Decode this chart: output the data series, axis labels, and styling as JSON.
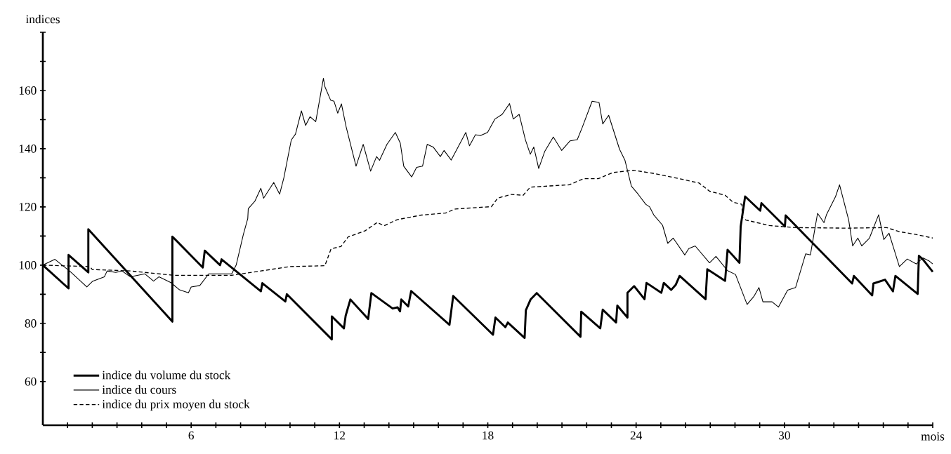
{
  "chart_data": {
    "type": "line",
    "xlabel": "mois",
    "ylabel": "indices",
    "xlim": [
      0,
      36
    ],
    "ylim": [
      45,
      180
    ],
    "xticks": [
      {
        "value": 1,
        "label": null
      },
      {
        "value": 2,
        "label": null
      },
      {
        "value": 3,
        "label": null
      },
      {
        "value": 4,
        "label": null
      },
      {
        "value": 5,
        "label": null
      },
      6,
      {
        "value": 7,
        "label": null
      },
      {
        "value": 8,
        "label": null
      },
      {
        "value": 9,
        "label": null
      },
      {
        "value": 10,
        "label": null
      },
      {
        "value": 11,
        "label": null
      },
      12,
      {
        "value": 13,
        "label": null
      },
      {
        "value": 14,
        "label": null
      },
      {
        "value": 15,
        "label": null
      },
      {
        "value": 16,
        "label": null
      },
      {
        "value": 17,
        "label": null
      },
      18,
      {
        "value": 19,
        "label": null
      },
      {
        "value": 20,
        "label": null
      },
      {
        "value": 21,
        "label": null
      },
      {
        "value": 22,
        "label": null
      },
      {
        "value": 23,
        "label": null
      },
      24,
      {
        "value": 25,
        "label": null
      },
      {
        "value": 26,
        "label": null
      },
      {
        "value": 27,
        "label": null
      },
      {
        "value": 28,
        "label": null
      },
      {
        "value": 29,
        "label": null
      },
      30,
      {
        "value": 31,
        "label": null
      },
      {
        "value": 32,
        "label": null
      },
      {
        "value": 33,
        "label": null
      },
      {
        "value": 34,
        "label": null
      },
      {
        "value": 35,
        "label": null
      },
      {
        "value": 36,
        "label": null
      }
    ],
    "yticks": [
      60,
      {
        "value": 70,
        "label": null
      },
      80,
      {
        "value": 90,
        "label": null
      },
      100,
      {
        "value": 110,
        "label": null
      },
      120,
      {
        "value": 130,
        "label": null
      },
      140,
      {
        "value": 150,
        "label": null
      },
      160,
      {
        "value": 170,
        "label": null
      },
      {
        "value": 180,
        "label": null
      }
    ],
    "legend": "bottom left",
    "series": [
      {
        "name": "indice du volume du stock",
        "color": "#000000",
        "line_style": "solid",
        "x": [
          0,
          1.04,
          1.04,
          1.84,
          1.84,
          5.24,
          5.24,
          6.47,
          6.55,
          7.17,
          7.23,
          8.82,
          8.88,
          9.81,
          9.87,
          11.69,
          11.69,
          12.18,
          12.25,
          12.44,
          13.16,
          13.29,
          14.15,
          14.35,
          14.45,
          14.5,
          14.78,
          14.9,
          16.45,
          16.6,
          18.21,
          18.31,
          18.71,
          18.81,
          19.49,
          19.54,
          19.73,
          19.98,
          21.75,
          21.78,
          22.55,
          22.65,
          23.19,
          23.24,
          23.65,
          23.65,
          23.92,
          24.34,
          24.42,
          25.02,
          25.12,
          25.42,
          25.6,
          25.76,
          26.81,
          26.88,
          27.6,
          27.7,
          28.18,
          28.23,
          28.41,
          29.02,
          29.07,
          30.02,
          30.05,
          32.74,
          32.81,
          33.55,
          33.6,
          34.07,
          34.39,
          34.49,
          35.39,
          35.44,
          35.6,
          36
        ],
        "values": [
          100,
          92,
          103.5,
          97.5,
          112.3,
          80.6,
          109.8,
          99.2,
          105,
          100,
          102,
          91,
          93.8,
          87.5,
          90,
          74.5,
          82.4,
          78.3,
          82.6,
          88.2,
          81.5,
          90.4,
          85.1,
          85.5,
          84.1,
          88.2,
          85.8,
          91.1,
          79.5,
          89.4,
          76.1,
          82,
          78.7,
          80.3,
          75,
          84.5,
          88.2,
          90.4,
          75.4,
          84,
          78.3,
          84.7,
          80.3,
          86.1,
          82,
          90.5,
          92.8,
          88.3,
          93.9,
          90.5,
          93.9,
          91.5,
          93.2,
          96.3,
          88.3,
          98.6,
          94.6,
          105.3,
          100.8,
          113.3,
          123.6,
          118.7,
          121.3,
          113.3,
          117.1,
          93.7,
          96.3,
          89.6,
          93.7,
          95,
          91,
          96.3,
          90.1,
          103.2,
          102,
          97.7
        ]
      },
      {
        "name": "indice du cours",
        "color": "#000000",
        "line_style": "solid",
        "x": [
          0,
          0.49,
          0.78,
          1.08,
          1.78,
          2.02,
          2.49,
          2.6,
          2.95,
          3.2,
          3.54,
          4.13,
          4.48,
          4.7,
          5.18,
          5.53,
          5.89,
          6.0,
          6.35,
          6.71,
          7.64,
          7.82,
          8.11,
          8.29,
          8.31,
          8.58,
          8.82,
          8.93,
          9.34,
          9.58,
          9.75,
          10.05,
          10.22,
          10.46,
          10.63,
          10.81,
          11.04,
          11.35,
          11.41,
          11.64,
          11.78,
          11.93,
          12.08,
          12.27,
          12.67,
          12.96,
          13.26,
          13.5,
          13.62,
          13.92,
          14.26,
          14.46,
          14.6,
          14.92,
          15.12,
          15.36,
          15.55,
          15.8,
          16.08,
          16.23,
          16.52,
          17.11,
          17.26,
          17.5,
          17.7,
          17.99,
          18.29,
          18.58,
          18.88,
          19.03,
          19.27,
          19.52,
          19.72,
          19.86,
          20.06,
          20.3,
          20.65,
          20.99,
          21.33,
          21.62,
          21.82,
          22.22,
          22.5,
          22.65,
          22.89,
          23.33,
          23.55,
          23.81,
          24.07,
          24.39,
          24.55,
          24.71,
          25.07,
          25.28,
          25.5,
          25.97,
          26.13,
          26.39,
          26.97,
          27.23,
          27.7,
          28.02,
          28.49,
          28.76,
          28.97,
          29.13,
          29.5,
          29.76,
          30.13,
          30.45,
          30.86,
          31.05,
          31.34,
          31.6,
          31.7,
          32.07,
          32.23,
          32.6,
          32.76,
          32.97,
          33.13,
          33.44,
          33.81,
          34.02,
          34.23,
          34.65,
          34.97,
          35.34,
          35.6,
          35.86,
          36
        ],
        "values": [
          100,
          102,
          100,
          98,
          92.5,
          94.5,
          96,
          98,
          97.5,
          98,
          96,
          97,
          94.5,
          96,
          94,
          91.5,
          90.5,
          92.5,
          93,
          97,
          97,
          100,
          110.5,
          116,
          119.4,
          122,
          126.4,
          123,
          128.4,
          124.4,
          130,
          143,
          145,
          153,
          148,
          151,
          149.3,
          164.2,
          161.3,
          156.7,
          156.3,
          152.2,
          155.4,
          147.5,
          134,
          141.5,
          132.3,
          137.3,
          136,
          141.5,
          145.6,
          141.9,
          134,
          130.3,
          133.6,
          134,
          141.5,
          140.5,
          137.3,
          139.4,
          136.1,
          145.6,
          141,
          144.8,
          144.5,
          145.6,
          150.2,
          151.8,
          155.5,
          150.2,
          151.8,
          143.1,
          138.1,
          140.6,
          133.2,
          139,
          144,
          139.4,
          142.7,
          143.1,
          147.3,
          156.3,
          155.9,
          148.5,
          151.5,
          139.8,
          136,
          127.1,
          124.5,
          120.9,
          120,
          117.3,
          113.7,
          107.5,
          109.3,
          103.5,
          105.7,
          106.6,
          100.8,
          103,
          98.1,
          96.8,
          86.5,
          89.2,
          92.3,
          87.4,
          87.4,
          85.6,
          91.4,
          92.3,
          103.9,
          103.5,
          117.8,
          114.6,
          117.3,
          123.6,
          127.6,
          115.5,
          106.6,
          109.3,
          106.6,
          109.3,
          117.3,
          108.8,
          111,
          99.5,
          102.1,
          100.4,
          102.5,
          101.4,
          100.4
        ]
      },
      {
        "name": "indice du prix moyen du stock",
        "color": "#000000",
        "line_style": "dashed",
        "x": [
          0,
          1.9,
          2.0,
          3.54,
          5.3,
          7.64,
          8.82,
          10.0,
          11.41,
          11.66,
          12.06,
          12.35,
          13.04,
          13.53,
          13.8,
          14.33,
          15.31,
          16.29,
          16.69,
          18.15,
          18.4,
          18.94,
          19.43,
          19.72,
          21.29,
          21.88,
          22.47,
          23.06,
          23.89,
          24.65,
          25.7,
          26.55,
          26.97,
          27.6,
          27.92,
          28.28,
          28.3,
          28.44,
          29.39,
          30.44,
          32.55,
          34.13,
          34.65,
          35.28,
          36
        ],
        "values": [
          100,
          99.5,
          98.5,
          98,
          96.5,
          96.5,
          98,
          99.5,
          99.8,
          105.6,
          106.4,
          109.7,
          111.8,
          114.7,
          113.5,
          115.6,
          117.2,
          117.9,
          119.3,
          120.1,
          123,
          124.3,
          124,
          126.8,
          127.6,
          129.7,
          129.7,
          131.8,
          132.6,
          131.6,
          129.8,
          128.2,
          125.4,
          124,
          121.6,
          120.9,
          116.4,
          115.5,
          113.6,
          112.9,
          112.7,
          112.9,
          111.5,
          110.6,
          109.3
        ]
      }
    ]
  }
}
